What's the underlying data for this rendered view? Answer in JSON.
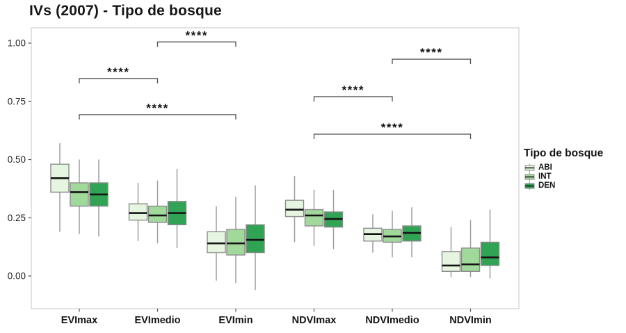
{
  "title": "IVs (2007) - Tipo de bosque",
  "legend": {
    "title": "Tipo de bosque",
    "items": [
      {
        "label": "ABI",
        "color": "#e5f5e0"
      },
      {
        "label": "INT",
        "color": "#a1d99b"
      },
      {
        "label": "DEN",
        "color": "#31a354"
      }
    ]
  },
  "chart_data": {
    "type": "boxplot",
    "title": "IVs (2007) - Tipo de bosque",
    "xlabel": "",
    "ylabel": "",
    "categories": [
      "EVImax",
      "EVImedio",
      "EVImin",
      "NDVImax",
      "NDVImedio",
      "NDVImin"
    ],
    "groups": [
      "ABI",
      "INT",
      "DEN"
    ],
    "ylim": [
      -0.145,
      1.06
    ],
    "yticks": [
      0.0,
      0.25,
      0.5,
      0.75,
      1.0
    ],
    "ytick_labels": [
      "0.00",
      "0.25",
      "0.50",
      "0.75",
      "1.00"
    ],
    "grid": false,
    "legend_position": "right",
    "colors": {
      "ABI": "#e5f5e0",
      "INT": "#a1d99b",
      "DEN": "#31a354",
      "box_border": "#8c8c8c",
      "whisker": "#9e9e9e",
      "median": "#141414",
      "panel_border": "#cfcfcf",
      "bracket": "#4d4d4d"
    },
    "series": [
      {
        "name": "ABI",
        "color": "#e5f5e0",
        "boxes": [
          {
            "category": "EVImax",
            "low": 0.19,
            "q1": 0.36,
            "median": 0.42,
            "q3": 0.48,
            "high": 0.57
          },
          {
            "category": "EVImedio",
            "low": 0.15,
            "q1": 0.24,
            "median": 0.27,
            "q3": 0.31,
            "high": 0.4
          },
          {
            "category": "EVImin",
            "low": -0.02,
            "q1": 0.1,
            "median": 0.14,
            "q3": 0.19,
            "high": 0.3
          },
          {
            "category": "NDVImax",
            "low": 0.145,
            "q1": 0.255,
            "median": 0.285,
            "q3": 0.325,
            "high": 0.43
          },
          {
            "category": "NDVImedio",
            "low": 0.1,
            "q1": 0.15,
            "median": 0.18,
            "q3": 0.205,
            "high": 0.265
          },
          {
            "category": "NDVImin",
            "low": -0.005,
            "q1": 0.02,
            "median": 0.045,
            "q3": 0.105,
            "high": 0.21
          }
        ]
      },
      {
        "name": "INT",
        "color": "#a1d99b",
        "boxes": [
          {
            "category": "EVImax",
            "low": 0.18,
            "q1": 0.3,
            "median": 0.36,
            "q3": 0.4,
            "high": 0.5
          },
          {
            "category": "EVImedio",
            "low": 0.14,
            "q1": 0.23,
            "median": 0.26,
            "q3": 0.3,
            "high": 0.41
          },
          {
            "category": "EVImin",
            "low": -0.03,
            "q1": 0.09,
            "median": 0.14,
            "q3": 0.2,
            "high": 0.34
          },
          {
            "category": "NDVImax",
            "low": 0.13,
            "q1": 0.215,
            "median": 0.26,
            "q3": 0.285,
            "high": 0.37
          },
          {
            "category": "NDVImedio",
            "low": 0.08,
            "q1": 0.145,
            "median": 0.17,
            "q3": 0.2,
            "high": 0.28
          },
          {
            "category": "NDVImin",
            "low": -0.005,
            "q1": 0.02,
            "median": 0.05,
            "q3": 0.12,
            "high": 0.24
          }
        ]
      },
      {
        "name": "DEN",
        "color": "#31a354",
        "boxes": [
          {
            "category": "EVImax",
            "low": 0.17,
            "q1": 0.3,
            "median": 0.35,
            "q3": 0.4,
            "high": 0.5
          },
          {
            "category": "EVImedio",
            "low": 0.12,
            "q1": 0.22,
            "median": 0.27,
            "q3": 0.32,
            "high": 0.46
          },
          {
            "category": "EVImin",
            "low": -0.06,
            "q1": 0.1,
            "median": 0.155,
            "q3": 0.22,
            "high": 0.39
          },
          {
            "category": "NDVImax",
            "low": 0.115,
            "q1": 0.21,
            "median": 0.245,
            "q3": 0.275,
            "high": 0.37
          },
          {
            "category": "NDVImedio",
            "low": 0.08,
            "q1": 0.15,
            "median": 0.185,
            "q3": 0.215,
            "high": 0.295
          },
          {
            "category": "NDVImin",
            "low": -0.01,
            "q1": 0.045,
            "median": 0.08,
            "q3": 0.145,
            "high": 0.285
          }
        ]
      }
    ],
    "significance_brackets": [
      {
        "from": "EVImedio",
        "to": "EVImin",
        "label": "****",
        "y": 1.005
      },
      {
        "from": "EVImax",
        "to": "EVImedio",
        "label": "****",
        "y": 0.848
      },
      {
        "from": "EVImax",
        "to": "EVImin",
        "label": "****",
        "y": 0.693
      },
      {
        "from": "NDVImedio",
        "to": "NDVImin",
        "label": "****",
        "y": 0.931
      },
      {
        "from": "NDVImax",
        "to": "NDVImedio",
        "label": "****",
        "y": 0.77
      },
      {
        "from": "NDVImax",
        "to": "NDVImin",
        "label": "****",
        "y": 0.609
      }
    ]
  }
}
